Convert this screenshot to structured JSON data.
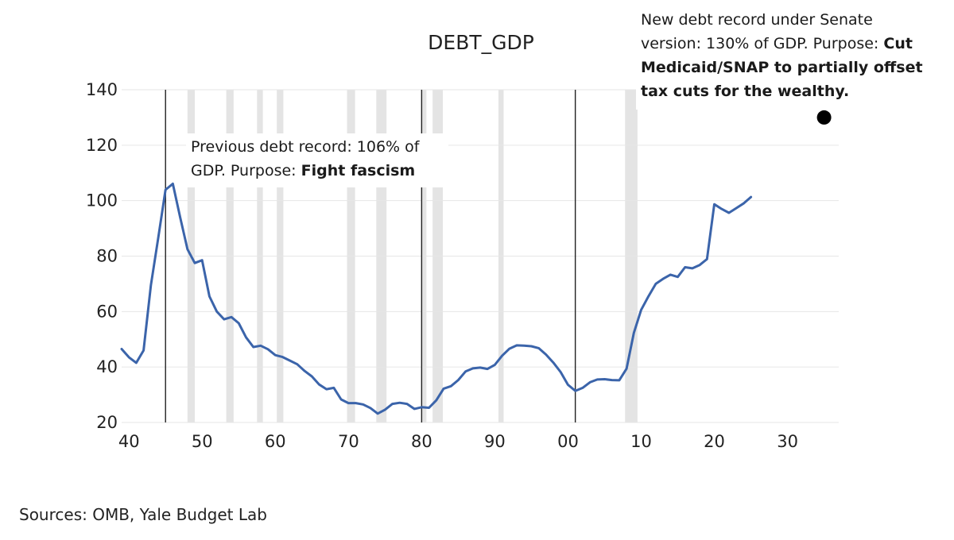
{
  "chart_data": {
    "type": "line",
    "title": "DEBT_GDP",
    "xlabel": "",
    "ylabel": "",
    "xlim": [
      1939,
      2037
    ],
    "ylim": [
      20,
      140
    ],
    "grid": true,
    "y_ticks": [
      20,
      40,
      60,
      80,
      100,
      120,
      140
    ],
    "x_ticks": [
      {
        "year": 1940,
        "label": "40"
      },
      {
        "year": 1950,
        "label": "50"
      },
      {
        "year": 1960,
        "label": "60"
      },
      {
        "year": 1970,
        "label": "70"
      },
      {
        "year": 1980,
        "label": "80"
      },
      {
        "year": 1990,
        "label": "90"
      },
      {
        "year": 2000,
        "label": "00"
      },
      {
        "year": 2010,
        "label": "10"
      },
      {
        "year": 2020,
        "label": "20"
      },
      {
        "year": 2030,
        "label": "30"
      }
    ],
    "recessions": [
      [
        1948.0,
        1949.0
      ],
      [
        1953.3,
        1954.3
      ],
      [
        1957.5,
        1958.3
      ],
      [
        1960.2,
        1961.1
      ],
      [
        1969.8,
        1970.9
      ],
      [
        1973.8,
        1975.2
      ],
      [
        1980.0,
        1980.5
      ],
      [
        1981.5,
        1982.9
      ],
      [
        1990.5,
        1991.2
      ],
      [
        2007.8,
        2009.5
      ]
    ],
    "vlines": [
      1945,
      1980,
      2001
    ],
    "series": [
      {
        "color": "#3b64aa",
        "x": [
          1939,
          1940,
          1941,
          1942,
          1943,
          1944,
          1945,
          1946,
          1947,
          1948,
          1949,
          1950,
          1951,
          1952,
          1953,
          1954,
          1955,
          1956,
          1957,
          1958,
          1959,
          1960,
          1961,
          1962,
          1963,
          1964,
          1965,
          1966,
          1967,
          1968,
          1969,
          1970,
          1971,
          1972,
          1973,
          1974,
          1975,
          1976,
          1977,
          1978,
          1979,
          1980,
          1981,
          1982,
          1983,
          1984,
          1985,
          1986,
          1987,
          1988,
          1989,
          1990,
          1991,
          1992,
          1993,
          1994,
          1995,
          1996,
          1997,
          1998,
          1999,
          2000,
          2001,
          2002,
          2003,
          2004,
          2005,
          2006,
          2007,
          2008,
          2009,
          2010,
          2011,
          2012,
          2013,
          2014,
          2015,
          2016,
          2017,
          2018,
          2019,
          2020,
          2021,
          2022,
          2023,
          2024,
          2025
        ],
        "values": [
          46.5,
          43.5,
          41.5,
          46.0,
          69.5,
          86.5,
          103.9,
          106.1,
          94.0,
          82.5,
          77.5,
          78.5,
          65.5,
          60.0,
          57.2,
          58.0,
          55.8,
          50.7,
          47.2,
          47.7,
          46.4,
          44.3,
          43.6,
          42.3,
          41.0,
          38.6,
          36.6,
          33.7,
          32.0,
          32.5,
          28.3,
          27.0,
          27.0,
          26.5,
          25.2,
          23.2,
          24.6,
          26.7,
          27.1,
          26.7,
          24.9,
          25.5,
          25.3,
          28.0,
          32.2,
          33.1,
          35.3,
          38.4,
          39.5,
          39.8,
          39.3,
          40.8,
          44.1,
          46.6,
          47.8,
          47.7,
          47.5,
          46.8,
          44.5,
          41.6,
          38.2,
          33.6,
          31.4,
          32.5,
          34.5,
          35.5,
          35.6,
          35.3,
          35.2,
          39.4,
          52.3,
          60.6,
          65.5,
          70.0,
          71.8,
          73.3,
          72.5,
          76.0,
          75.6,
          76.8,
          78.9,
          98.7,
          97.0,
          95.6,
          97.3,
          99.0,
          101.3
        ]
      }
    ],
    "points": [
      {
        "x": 2035,
        "y": 130
      }
    ]
  },
  "annotations": {
    "left": {
      "line1": "Previous debt record: 106% of",
      "line2a": "GDP. Purpose: ",
      "line2b": "Fight fascism"
    },
    "right": {
      "line1": "New debt record under Senate",
      "line2a": "version: 130% of GDP. Purpose: ",
      "line2b": "Cut",
      "line3": "Medicaid/SNAP to partially offset",
      "line4": "tax cuts for the wealthy."
    }
  },
  "sources": "Sources: OMB, Yale Budget Lab"
}
